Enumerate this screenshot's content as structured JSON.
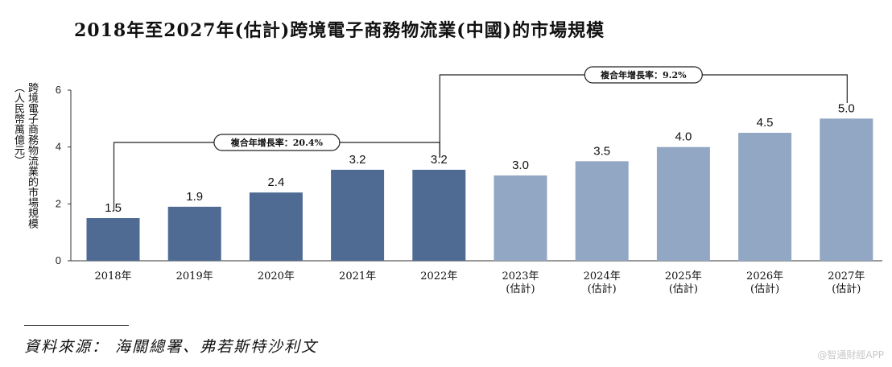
{
  "title": "2018年至2027年(估計)跨境電子商務物流業(中國)的市場規模",
  "source": "資料來源： 海關總署、弗若斯特沙利文",
  "watermark": "@智通財經APP",
  "chart_data": {
    "type": "bar",
    "ylabel_lines": [
      "跨境電子商務物流業的市場規模",
      "（人民幣萬億元）"
    ],
    "ylim": [
      0,
      6
    ],
    "yticks": [
      "0",
      "2",
      "4",
      "6"
    ],
    "categories": [
      [
        "2018年"
      ],
      [
        "2019年"
      ],
      [
        "2020年"
      ],
      [
        "2021年"
      ],
      [
        "2022年"
      ],
      [
        "2023年",
        "(估計)"
      ],
      [
        "2024年",
        "(估計)"
      ],
      [
        "2025年",
        "(估計)"
      ],
      [
        "2026年",
        "(估計)"
      ],
      [
        "2027年",
        "(估計)"
      ]
    ],
    "values": [
      1.5,
      1.9,
      2.4,
      3.2,
      3.2,
      3.0,
      3.5,
      4.0,
      4.5,
      5.0
    ],
    "value_labels": [
      "1.5",
      "1.9",
      "2.4",
      "3.2",
      "3.2",
      "3.0",
      "3.5",
      "4.0",
      "4.5",
      "5.0"
    ],
    "estimated": [
      false,
      false,
      false,
      false,
      false,
      true,
      true,
      true,
      true,
      true
    ],
    "colors": {
      "historical": "#4f6b93",
      "estimated": "#91a7c4"
    },
    "cagr": [
      {
        "label": "複合年增長率：20.4%",
        "from": 0,
        "to": 4
      },
      {
        "label": "複合年增長率：9.2%",
        "from": 4,
        "to": 9
      }
    ]
  }
}
